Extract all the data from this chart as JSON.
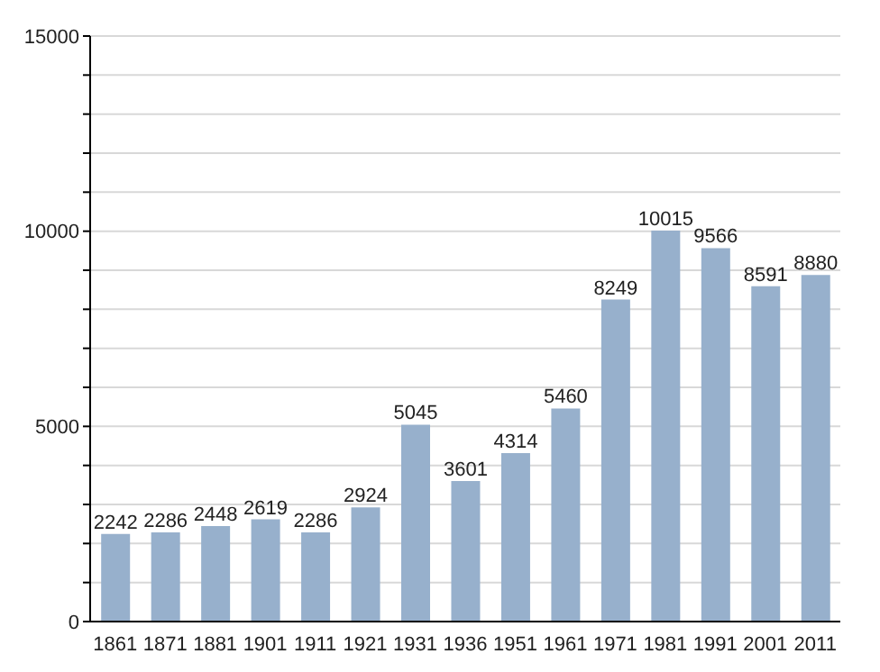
{
  "chart_data": {
    "type": "bar",
    "categories": [
      "1861",
      "1871",
      "1881",
      "1901",
      "1911",
      "1921",
      "1931",
      "1936",
      "1951",
      "1961",
      "1971",
      "1981",
      "1991",
      "2001",
      "2011"
    ],
    "values": [
      2242,
      2286,
      2448,
      2619,
      2286,
      2924,
      5045,
      3601,
      4314,
      5460,
      8249,
      10015,
      9566,
      8591,
      8880
    ],
    "color": "#97b0cc",
    "ylim": [
      0,
      15000
    ],
    "yticks": [
      0,
      {
        "value": 1000,
        "label": null
      },
      {
        "value": 2000,
        "label": null
      },
      {
        "value": 3000,
        "label": null
      },
      {
        "value": 4000,
        "label": null
      },
      5000,
      {
        "value": 6000,
        "label": null
      },
      {
        "value": 7000,
        "label": null
      },
      {
        "value": 8000,
        "label": null
      },
      {
        "value": 9000,
        "label": null
      },
      10000,
      {
        "value": 11000,
        "label": null
      },
      {
        "value": 12000,
        "label": null
      },
      {
        "value": 13000,
        "label": null
      },
      {
        "value": 14000,
        "label": null
      },
      15000
    ],
    "grid": "y",
    "data_labels": true
  }
}
